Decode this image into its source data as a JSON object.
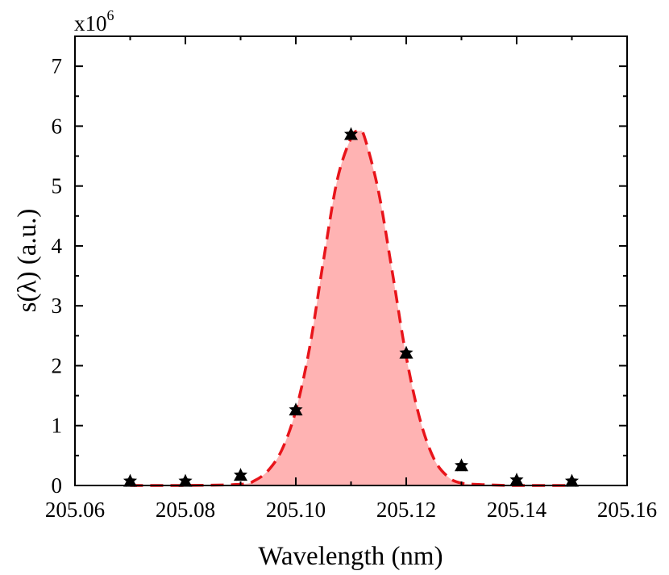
{
  "chart_data": {
    "type": "scatter",
    "title": "",
    "xlabel": "Wavelength (nm)",
    "ylabel": "s(λ) (a.u.)",
    "y_multiplier": {
      "base": "x10",
      "exponent": "6"
    },
    "xlim": [
      205.06,
      205.16
    ],
    "ylim": [
      0,
      7.5
    ],
    "x_ticks": [
      "205.06",
      "205.08",
      "205.10",
      "205.12",
      "205.14",
      "205.16"
    ],
    "y_ticks": [
      "0",
      "1",
      "2",
      "3",
      "4",
      "5",
      "6",
      "7"
    ],
    "grid": false,
    "legend": "none",
    "colors": {
      "fit_line": "#e8141a",
      "fit_fill": "#ffb3b3",
      "markers": "#000000"
    },
    "series": [
      {
        "type": "scatter",
        "marker": "triangle-and-star",
        "x": [
          205.07,
          205.08,
          205.09,
          205.1,
          205.11,
          205.12,
          205.13,
          205.14,
          205.15
        ],
        "y": [
          0.06,
          0.06,
          0.16,
          1.25,
          5.85,
          2.2,
          0.32,
          0.08,
          0.06
        ]
      },
      {
        "type": "area",
        "style": "dashed",
        "x": [
          205.07,
          205.08,
          205.09,
          205.0925,
          205.095,
          205.0975,
          205.1,
          205.1025,
          205.105,
          205.1075,
          205.11,
          205.1115,
          205.1125,
          205.115,
          205.1175,
          205.12,
          205.1225,
          205.125,
          205.1275,
          205.13,
          205.135,
          205.14,
          205.15
        ],
        "y": [
          0.0,
          0.0,
          0.02,
          0.08,
          0.25,
          0.6,
          1.25,
          2.3,
          3.75,
          5.1,
          5.8,
          5.92,
          5.8,
          4.9,
          3.55,
          2.15,
          1.1,
          0.45,
          0.15,
          0.04,
          0.01,
          0.0,
          0.0
        ]
      }
    ]
  }
}
